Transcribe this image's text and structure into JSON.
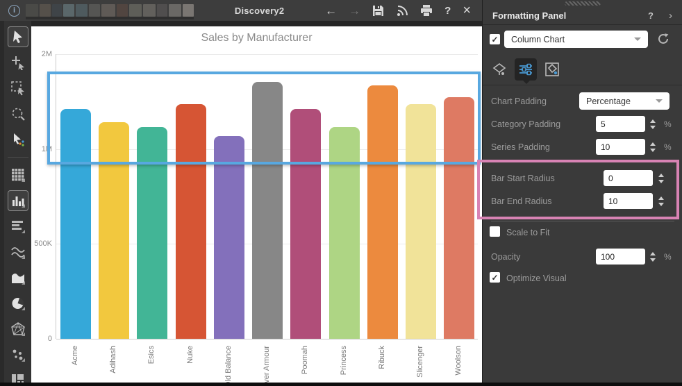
{
  "top_bar": {
    "title": "Discovery2",
    "info_icon": "i",
    "help_label": "?",
    "close_label": "×",
    "back_icon": "←",
    "forward_icon": "→",
    "redacted_tab_colors": [
      "#4a4a47",
      "#55504a",
      "#3f4448",
      "#5a676a",
      "#4e5a5e",
      "#555553",
      "#5f5a56",
      "#514540",
      "#5e5e58",
      "#62605c",
      "#504e4e",
      "#6a6865",
      "#7a7672"
    ]
  },
  "toolbar": {
    "tools": [
      {
        "name": "pointer-tool",
        "selected": true
      },
      {
        "name": "add-pointer-tool",
        "selected": false
      },
      {
        "name": "marquee-select-tool",
        "selected": false
      },
      {
        "name": "zoom-select-tool",
        "selected": false
      },
      {
        "name": "multi-select-tool",
        "selected": false
      },
      {
        "name": "divider",
        "selected": false
      },
      {
        "name": "grid-visual-tool",
        "selected": false
      },
      {
        "name": "column-chart-tool",
        "selected": true
      },
      {
        "name": "row-chart-tool",
        "selected": false
      },
      {
        "name": "line-chart-tool",
        "selected": false
      },
      {
        "name": "area-chart-tool",
        "selected": false
      },
      {
        "name": "pie-chart-tool",
        "selected": false
      },
      {
        "name": "radar-chart-tool",
        "selected": false
      },
      {
        "name": "scatter-chart-tool",
        "selected": false
      },
      {
        "name": "treemap-tool",
        "selected": false
      }
    ]
  },
  "formatting_panel": {
    "title": "Formatting Panel",
    "help_icon": "?",
    "collapse_icon": "›",
    "chart_type": {
      "checked": true,
      "value": "Column Chart"
    },
    "tabs": [
      {
        "name": "style-tab",
        "selected": false
      },
      {
        "name": "settings-tab",
        "selected": true
      },
      {
        "name": "fill-options-tab",
        "selected": false
      }
    ],
    "fields": {
      "chart_padding": {
        "label": "Chart Padding",
        "value": "Percentage"
      },
      "category_padding": {
        "label": "Category Padding",
        "value": "5",
        "unit": "%"
      },
      "series_padding": {
        "label": "Series Padding",
        "value": "10",
        "unit": "%"
      },
      "bar_start_radius": {
        "label": "Bar Start Radius",
        "value": "0"
      },
      "bar_end_radius": {
        "label": "Bar End Radius",
        "value": "10"
      },
      "scale_to_fit": {
        "label": "Scale to Fit",
        "checked": false
      },
      "opacity": {
        "label": "Opacity",
        "value": "100",
        "unit": "%"
      },
      "optimize_visual": {
        "label": "Optimize Visual",
        "checked": true
      }
    }
  },
  "colors": {
    "highlight_blue": "#58a8e0",
    "highlight_pink": "#d883b4",
    "panel_accent_blue": "#4a9bd5"
  },
  "chart_data": {
    "type": "bar",
    "title": "Sales by Manufacturer",
    "categories": [
      "Acme",
      "Adihash",
      "Esics",
      "Nuke",
      "Old Balance",
      "Over Armour",
      "Poomah",
      "Princess",
      "Ribuck",
      "Slicenger",
      "Woolson"
    ],
    "values": [
      1420000,
      1280000,
      1230000,
      1470000,
      1140000,
      1710000,
      1420000,
      1230000,
      1670000,
      1470000,
      1550000
    ],
    "bar_colors": [
      "#35A8D9",
      "#F2C83E",
      "#42B596",
      "#D65534",
      "#8370BB",
      "#878787",
      "#B04E79",
      "#AED584",
      "#EC8A3E",
      "#F1E399",
      "#DE7A63"
    ],
    "y_ticks": [
      {
        "label": "2M",
        "value": 2000000
      },
      {
        "label": "1M",
        "value": 1000000
      },
      {
        "label": "500K",
        "value": 500000
      },
      {
        "label": "0",
        "value": 0
      }
    ],
    "ylim": [
      0,
      2000000
    ],
    "xlabel": "",
    "ylabel": "",
    "grid": true,
    "legend": false
  }
}
